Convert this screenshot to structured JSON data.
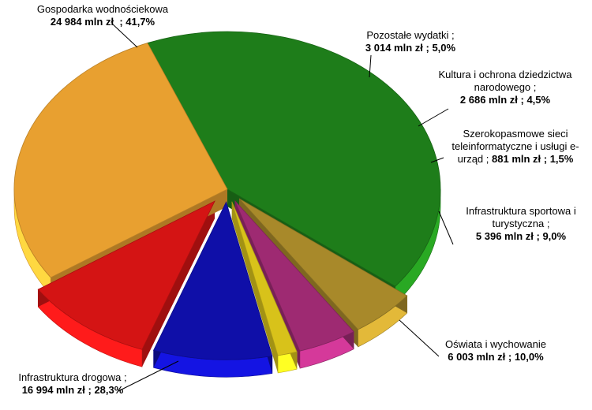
{
  "chart_data": {
    "type": "pie",
    "style": "3d-exploded",
    "legend": "none",
    "unit": "mln zł",
    "slices": [
      {
        "name": "Gospodarka wodnościekowa",
        "value": 24984,
        "percent": 41.7,
        "value_text": "24 984 mln zł",
        "percent_text": "41,7%",
        "color": "#1e7d1a"
      },
      {
        "name": "Pozostałe wydatki",
        "value": 3014,
        "percent": 5.0,
        "value_text": "3 014 mln zł",
        "percent_text": "5,0%",
        "color": "#a8892a"
      },
      {
        "name": "Kultura i ochrona dziedzictwa narodowego",
        "value": 2686,
        "percent": 4.5,
        "value_text": "2 686 mln zł",
        "percent_text": "4,5%",
        "color": "#9e2a72"
      },
      {
        "name": "Szerokopasmowe sieci teleinformatyczne i usługi e-urząd",
        "value": 881,
        "percent": 1.5,
        "value_text": "881 mln zł",
        "percent_text": "1,5%",
        "color": "#d8c21a"
      },
      {
        "name": "Infrastruktura sportowa i turystyczna",
        "value": 5396,
        "percent": 9.0,
        "value_text": "5 396 mln zł",
        "percent_text": "9,0%",
        "color": "#0f0fa8"
      },
      {
        "name": "Oświata i wychowanie",
        "value": 6003,
        "percent": 10.0,
        "value_text": "6 003 mln zł",
        "percent_text": "10,0%",
        "color": "#d41414"
      },
      {
        "name": "Infrastruktura drogowa",
        "value": 16994,
        "percent": 28.3,
        "value_text": "16 994 mln zł",
        "percent_text": "28,3%",
        "color": "#e8a030"
      }
    ]
  },
  "labels": {
    "s0": {
      "line1": "Gospodarka wodnościekowa",
      "line2": "24 984 mln zł",
      "line2b": "; 41,7%"
    },
    "s1": {
      "line1": "Pozostałe wydatki  ;",
      "line2": "3 014 mln zł ; 5,0%"
    },
    "s2": {
      "line1": "Kultura i ochrona dziedzictwa",
      "line1b": "narodowego  ;",
      "line2": "2 686 mln zł   ; 4,5%"
    },
    "s3": {
      "line1": "Szerokopasmowe sieci",
      "line1b": "teleinformatyczne i usługi e-",
      "line1c": "urząd  ;",
      "line2": "881 mln zł   ; 1,5%"
    },
    "s4": {
      "line1": "Infrastruktura sportowa i",
      "line1b": "turystyczna  ;",
      "line2": "5 396 mln zł   ; 9,0%"
    },
    "s5": {
      "line1": "Oświata i wychowanie",
      "line2": "6 003 mln zł   ; 10,0%"
    },
    "s6": {
      "line1": "Infrastruktura drogowa  ;",
      "line2": "16 994 mln zł   ; 28,3%"
    }
  }
}
